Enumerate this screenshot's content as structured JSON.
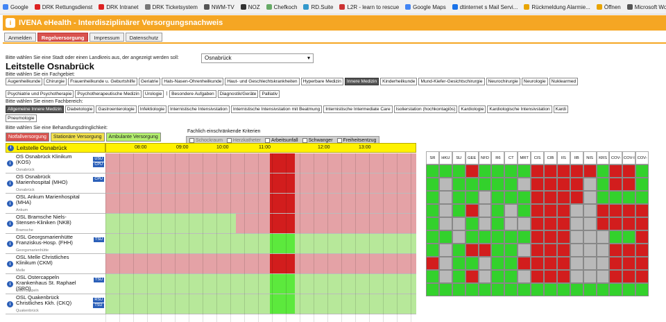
{
  "bookmarks": [
    {
      "label": "Google",
      "icon": "google-icon",
      "color": "#4285f4"
    },
    {
      "label": "DRK Rettungsdienst",
      "icon": "red-cross-icon",
      "color": "#d22"
    },
    {
      "label": "DRK Intranet",
      "icon": "red-cross-icon",
      "color": "#d22"
    },
    {
      "label": "DRK Ticketsystem",
      "icon": "ticket-icon",
      "color": "#777"
    },
    {
      "label": "NWM-TV",
      "icon": "globe-icon",
      "color": "#555"
    },
    {
      "label": "NOZ",
      "icon": "newspaper-icon",
      "color": "#333"
    },
    {
      "label": "Chefkoch",
      "icon": "chef-icon",
      "color": "#6a6"
    },
    {
      "label": "RD.Suite",
      "icon": "suite-icon",
      "color": "#39c"
    },
    {
      "label": "L2R - learn to rescue",
      "icon": "l2r-icon",
      "color": "#c33"
    },
    {
      "label": "Google Maps",
      "icon": "google-icon",
      "color": "#4285f4"
    },
    {
      "label": "dtinternet s Mail Servi...",
      "icon": "mail-icon",
      "color": "#1a73e8"
    },
    {
      "label": "Rückmeldung Alarmie...",
      "icon": "bell-icon",
      "color": "#e8a400"
    },
    {
      "label": "Öffnen",
      "icon": "folder-icon",
      "color": "#e8a400"
    },
    {
      "label": "Microsoft Word - UN",
      "icon": "globe-icon",
      "color": "#555"
    }
  ],
  "app": {
    "title": "IVENA eHealth - Interdisziplinärer Versorgungsnachweis",
    "logo": "i"
  },
  "nav": [
    "Anmelden",
    "Regelversorgung",
    "Impressum",
    "Datenschutz"
  ],
  "city": {
    "prompt": "Bitte wählen Sie eine Stadt oder einen Landkreis aus, der angezeigt werden soll:",
    "value": "Osnabrück",
    "chevron": "▾"
  },
  "page_title": "Leitstelle Osnabrück",
  "fachgebiet": {
    "prompt": "Bitte wählen Sie ein Fachgebiet:",
    "row1": [
      "Augenheilkunde",
      "Chirurgie",
      "Frauenheilkunde u. Geburtshilfe",
      "Geriatrie",
      "Hals-Nasen-Ohrenheilkunde",
      "Haut- und Geschlechtskrankheiten",
      "Hyperbare Medizin",
      "Innere Medizin",
      "Kinderheilkunde",
      "Mund-Kiefer-Gesichtschirurgie",
      "Neurochirurgie",
      "Neurologie",
      "Nuklearmed"
    ],
    "row2": [
      "Psychiatrie und Psychotherapie",
      "Psychotherapeutische Medizin",
      "Urologie",
      "|",
      "Besondere Aufgaben",
      "Diagnostik/Geräte",
      "Palliativ"
    ]
  },
  "fachbereich": {
    "prompt": "Bitte wählen Sie einen Fachbereich:",
    "row1": [
      "Allgemeine Innere Medizin",
      "Diabetologie",
      "Gastroenterologie",
      "Infektiologie",
      "Internistische Intensivstation",
      "Internistische Intensivstation mit Beatmung",
      "Internistische Intermediate Care",
      "Isolierstation (hochkontagiös)",
      "Kardiologie",
      "Kardiologische Intensivstation",
      "Kardi"
    ],
    "row2": [
      "Pneumologie"
    ]
  },
  "dringlichkeit": {
    "prompt": "Bitte wählen Sie eine Behandlungsdringlichkeit:",
    "options": [
      "Notfallversorgung",
      "Stationäre Versorgung",
      "Ambulante Versorgung"
    ]
  },
  "kriterien": {
    "label": "Fachlich einschränkende Kriterien",
    "items": [
      "Schockraum",
      "Herzkatheter",
      "Arbeitsunfall",
      "Schwanger",
      "Freiheitsentzug"
    ]
  },
  "table": {
    "header": "Leitstelle Osnabrück",
    "times": [
      "08:00",
      "09:00",
      "10:00",
      "11:00",
      "12:00",
      "13:00"
    ],
    "hospitals": [
      {
        "name": "OS Osnabrück Klinikum (KOS)",
        "place": "Osnabrück",
        "badges": [
          "USU",
          "CPU"
        ]
      },
      {
        "name": "OS Osnabrück Marienhospital (MHO)",
        "place": "Osnabrück",
        "badges": [
          "CPU"
        ]
      },
      {
        "name": "OSL Ankum Marienhospital (MHA)",
        "place": "Ankum",
        "badges": []
      },
      {
        "name": "OSL Bramsche Niels-Stensen-Kliniken (NKB)",
        "place": "Bramsche",
        "badges": []
      },
      {
        "name": "OSL Georgsmarienhütte Franziskus-Hosp. (FHH)",
        "place": "Georgsmarienhütte",
        "badges": [
          "TSU"
        ]
      },
      {
        "name": "OSL Melle Christliches Klinikum (CKM)",
        "place": "Melle",
        "badges": []
      },
      {
        "name": "OSL Ostercappeln Krankenhaus St. Raphael (SRO)",
        "place": "Ostercappeln",
        "badges": [
          "TSU"
        ]
      },
      {
        "name": "OSL Quakenbrück Christliches Kkh. (CKQ)",
        "place": "Quakenbrück",
        "badges": [
          "RSU",
          "TSU"
        ]
      }
    ],
    "timeline_rows": [
      [
        {
          "from": 0,
          "to": 0.53,
          "c": "pink"
        },
        {
          "from": 0.53,
          "to": 0.61,
          "c": "red"
        },
        {
          "from": 0.61,
          "to": 1,
          "c": "pink"
        }
      ],
      [
        {
          "from": 0,
          "to": 0.53,
          "c": "pink"
        },
        {
          "from": 0.53,
          "to": 0.61,
          "c": "red"
        },
        {
          "from": 0.61,
          "to": 1,
          "c": "pink"
        }
      ],
      [
        {
          "from": 0,
          "to": 0.53,
          "c": "pink"
        },
        {
          "from": 0.53,
          "to": 0.61,
          "c": "red"
        },
        {
          "from": 0.61,
          "to": 1,
          "c": "pink"
        }
      ],
      [
        {
          "from": 0,
          "to": 0.42,
          "c": "green"
        },
        {
          "from": 0.42,
          "to": 0.53,
          "c": "pink"
        },
        {
          "from": 0.53,
          "to": 0.61,
          "c": "red"
        },
        {
          "from": 0.61,
          "to": 1,
          "c": "pink"
        }
      ],
      [
        {
          "from": 0,
          "to": 0.53,
          "c": "green"
        },
        {
          "from": 0.53,
          "to": 0.61,
          "c": "brightgreen"
        },
        {
          "from": 0.61,
          "to": 1,
          "c": "green"
        }
      ],
      [
        {
          "from": 0,
          "to": 0.53,
          "c": "pink"
        },
        {
          "from": 0.53,
          "to": 0.61,
          "c": "red"
        },
        {
          "from": 0.61,
          "to": 1,
          "c": "pink"
        }
      ],
      [
        {
          "from": 0,
          "to": 0.53,
          "c": "green"
        },
        {
          "from": 0.53,
          "to": 0.61,
          "c": "brightgreen"
        },
        {
          "from": 0.61,
          "to": 1,
          "c": "green"
        }
      ],
      [
        {
          "from": 0,
          "to": 0.53,
          "c": "green"
        },
        {
          "from": 0.53,
          "to": 0.61,
          "c": "brightgreen"
        },
        {
          "from": 0.61,
          "to": 1,
          "c": "green"
        }
      ]
    ]
  },
  "matrix": {
    "columns": [
      "SR",
      "HKU",
      "SU",
      "GEE",
      "NFD",
      "R6",
      "CT",
      "MRT",
      "CIS",
      "CIB",
      "IIS",
      "IIB",
      "NIS",
      "KRS",
      "COV-B",
      "COV-I",
      "COV-N"
    ],
    "rows": [
      "GGGRGGGGRRRRRGRRG",
      "GXGGGGGXRRRRXGRRG",
      "GXGGXGGGRRRRXGGGG",
      "GXGRXGXGRRRXXRRRR",
      "GXXGXGXXRRRXXRRRR",
      "GGXGGGGGRRRXXXGGR",
      "GXGRRGGXRRRXXXRRR",
      "RXGGXGGRRRRXXXRRR",
      "GXGRXGGXRRRXXXRRR",
      "GGGGGGGGGGGGGGGGG"
    ]
  },
  "colors": {
    "orange": "#f5a623",
    "yellow": "#fff200",
    "red": "#d21d1d",
    "green": "#33d12c",
    "grey": "#b9b9b9",
    "pink": "#e4a2a6",
    "lightgreen": "#b7e89a",
    "brightgreen": "#5ce93d"
  }
}
